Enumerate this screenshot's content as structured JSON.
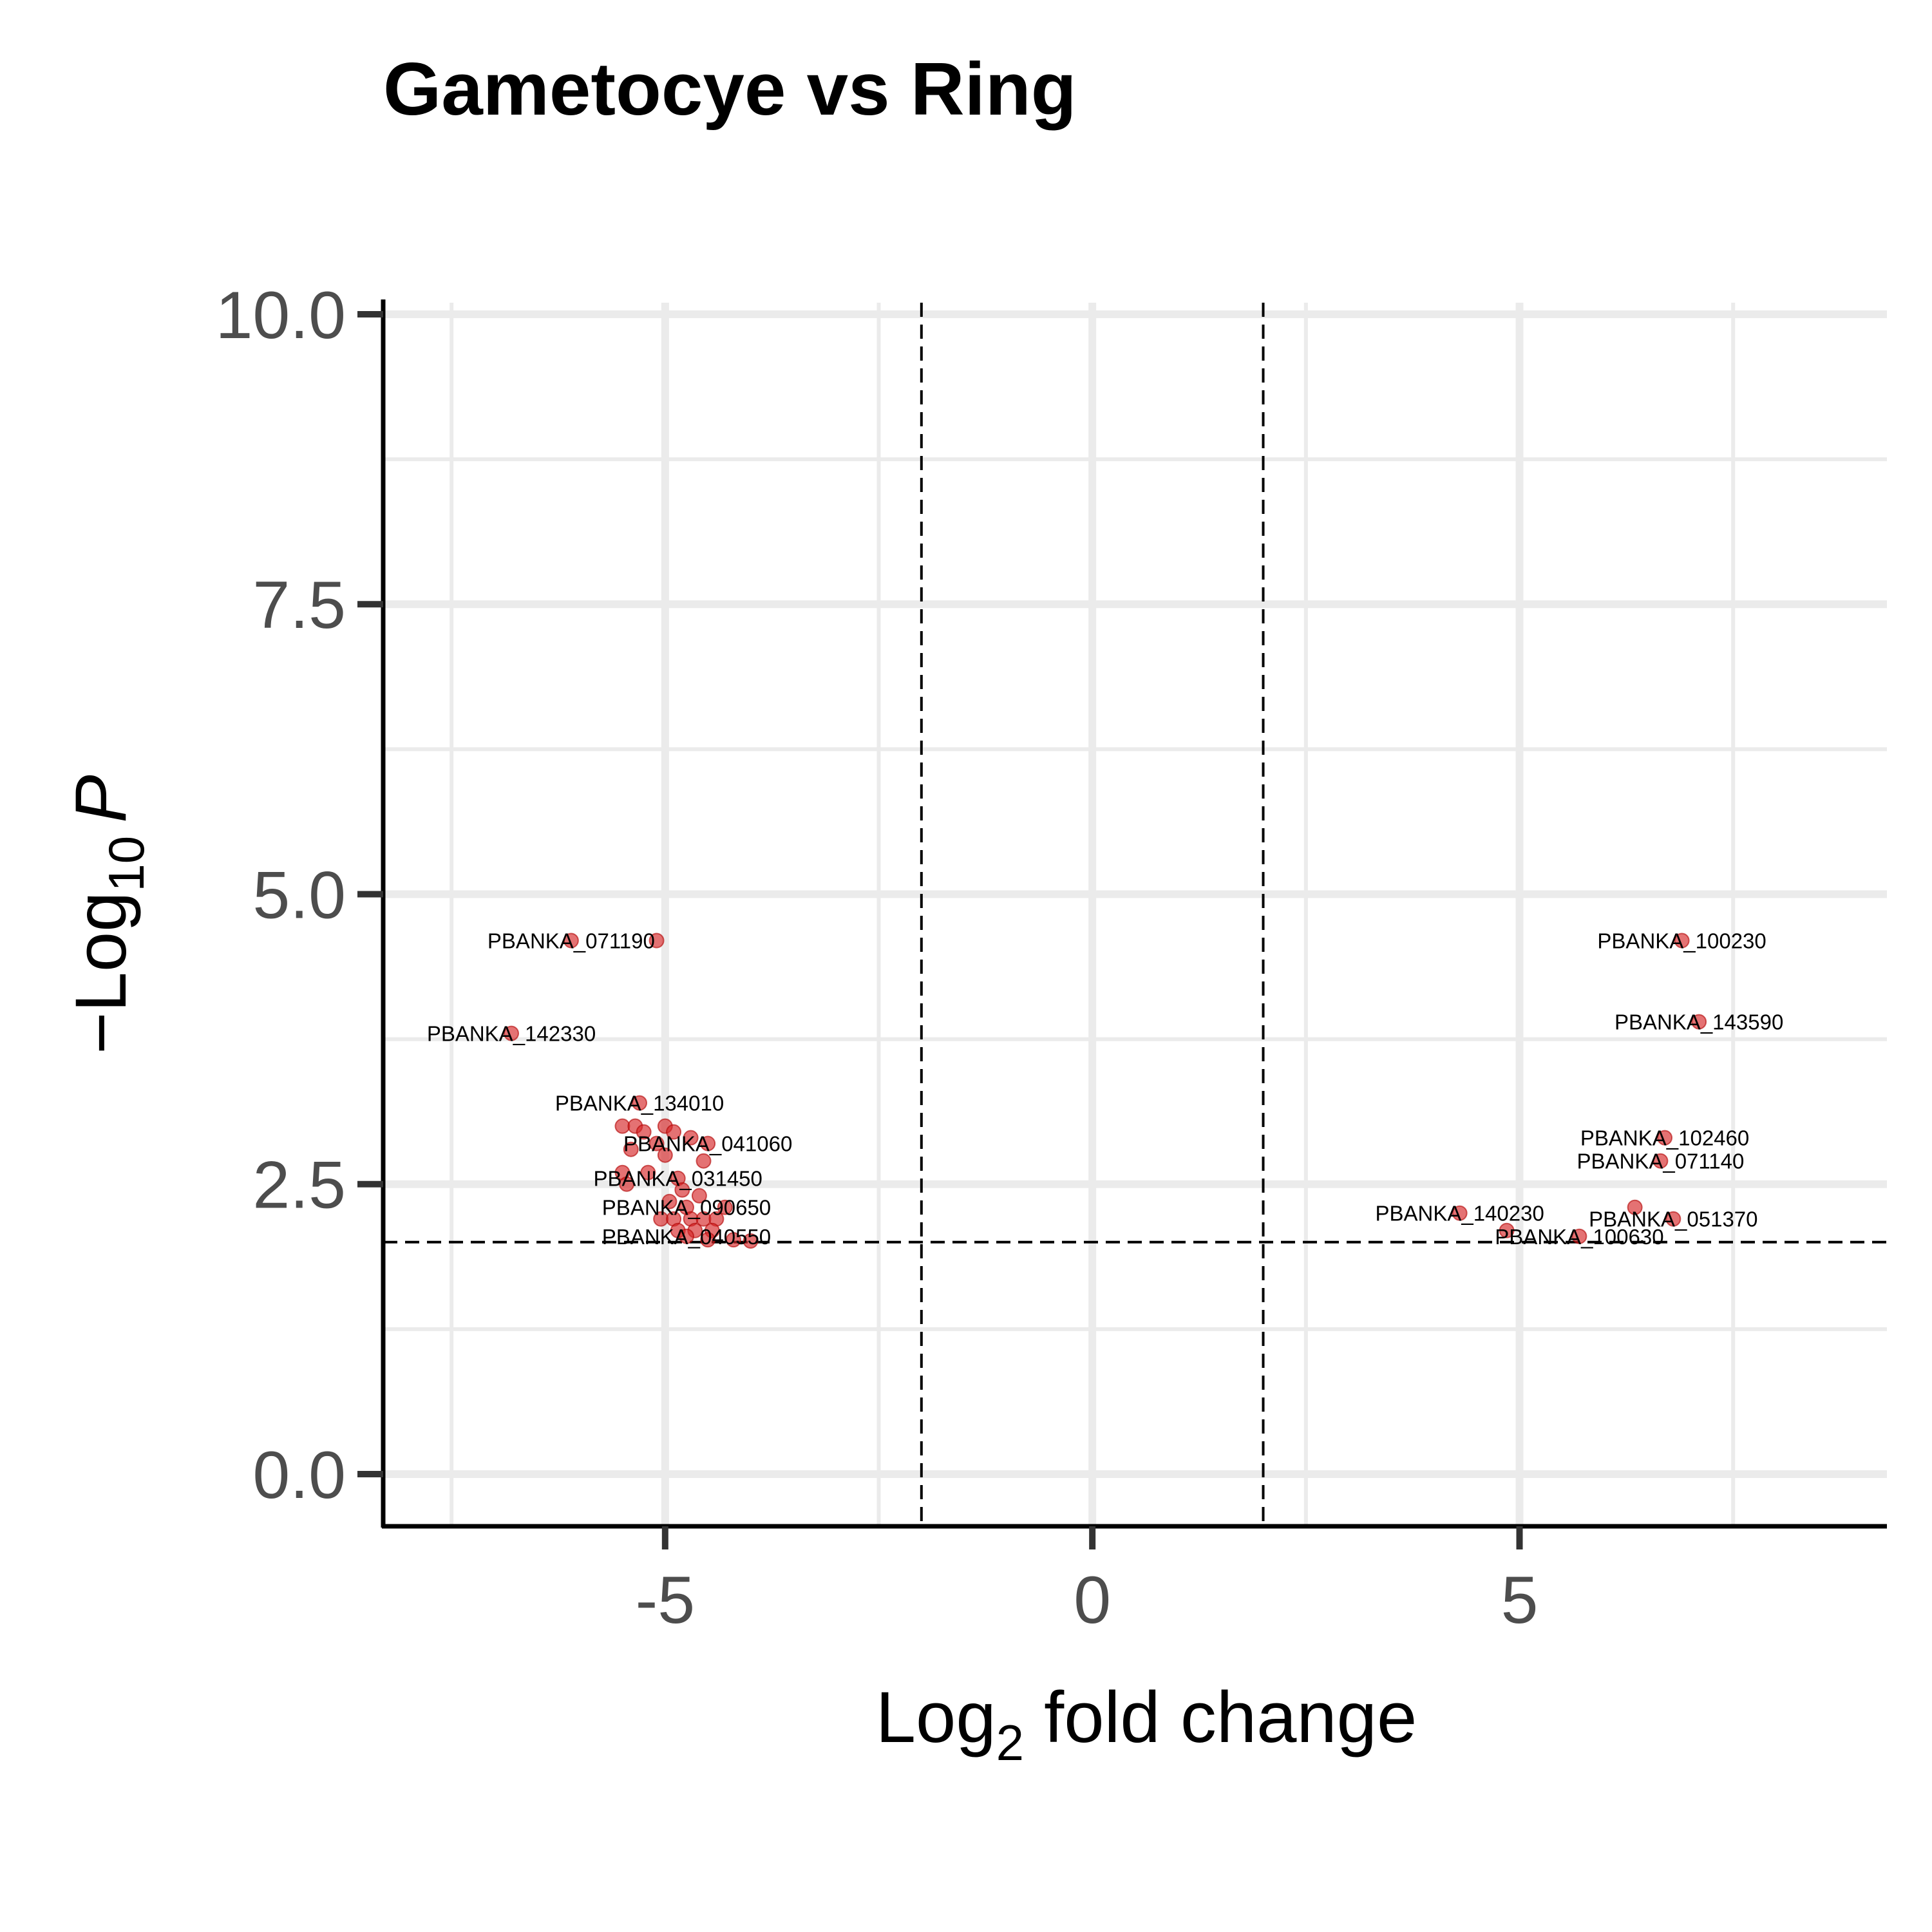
{
  "chart_data": {
    "type": "scatter",
    "title": "Gametocye vs Ring",
    "xlabel": {
      "base": "Log",
      "sub": "2",
      "rest": " fold change"
    },
    "ylabel": {
      "prefix": "−Log",
      "sub": "10",
      "var": "P"
    },
    "xlim": [
      -8.3,
      9.3
    ],
    "ylim": [
      -0.45,
      10.1
    ],
    "x_ticks": [
      -5,
      0,
      5
    ],
    "x_tick_labels": [
      "-5",
      "0",
      "5"
    ],
    "y_ticks": [
      0,
      2.5,
      5,
      7.5,
      10
    ],
    "y_tick_labels": [
      "0.0",
      "2.5",
      "5.0",
      "7.5",
      "10.0"
    ],
    "grid": true,
    "thresholds": {
      "log2fc": [
        -2,
        2
      ],
      "neg_log10_p": 2
    },
    "point_color": "#d62728",
    "points": [
      {
        "x": -6.1,
        "y": 4.6,
        "label": "PBANKA_071190"
      },
      {
        "x": -5.1,
        "y": 4.6
      },
      {
        "x": -6.8,
        "y": 3.8,
        "label": "PBANKA_142330"
      },
      {
        "x": -5.3,
        "y": 3.2,
        "label": "PBANKA_134010"
      },
      {
        "x": -5.5,
        "y": 3.0
      },
      {
        "x": -5.35,
        "y": 3.0
      },
      {
        "x": -5.25,
        "y": 2.95
      },
      {
        "x": -5.0,
        "y": 3.0
      },
      {
        "x": -4.9,
        "y": 2.95
      },
      {
        "x": -4.7,
        "y": 2.9
      },
      {
        "x": -4.5,
        "y": 2.85,
        "label": "PBANKA_041060"
      },
      {
        "x": -5.4,
        "y": 2.8
      },
      {
        "x": -5.1,
        "y": 2.85
      },
      {
        "x": -5.0,
        "y": 2.75
      },
      {
        "x": -4.55,
        "y": 2.7
      },
      {
        "x": -5.5,
        "y": 2.6
      },
      {
        "x": -5.2,
        "y": 2.6
      },
      {
        "x": -5.45,
        "y": 2.5
      },
      {
        "x": -4.85,
        "y": 2.55,
        "label": "PBANKA_031450"
      },
      {
        "x": -4.8,
        "y": 2.45
      },
      {
        "x": -4.6,
        "y": 2.4
      },
      {
        "x": -4.95,
        "y": 2.35
      },
      {
        "x": -4.75,
        "y": 2.3,
        "label": "PBANKA_090650"
      },
      {
        "x": -4.3,
        "y": 2.3
      },
      {
        "x": -5.05,
        "y": 2.2
      },
      {
        "x": -4.9,
        "y": 2.2
      },
      {
        "x": -4.7,
        "y": 2.2
      },
      {
        "x": -4.55,
        "y": 2.2
      },
      {
        "x": -4.4,
        "y": 2.2
      },
      {
        "x": -4.85,
        "y": 2.1
      },
      {
        "x": -4.65,
        "y": 2.1
      },
      {
        "x": -4.45,
        "y": 2.1
      },
      {
        "x": -4.75,
        "y": 2.05,
        "label": "PBANKA_040550"
      },
      {
        "x": -4.5,
        "y": 2.02
      },
      {
        "x": -4.2,
        "y": 2.02
      },
      {
        "x": -4.0,
        "y": 2.01
      },
      {
        "x": 6.9,
        "y": 4.6,
        "label": "PBANKA_100230"
      },
      {
        "x": 7.1,
        "y": 3.9,
        "label": "PBANKA_143590"
      },
      {
        "x": 6.7,
        "y": 2.9,
        "label": "PBANKA_102460"
      },
      {
        "x": 6.65,
        "y": 2.7,
        "label": "PBANKA_071140"
      },
      {
        "x": 4.3,
        "y": 2.25,
        "label": "PBANKA_140230"
      },
      {
        "x": 6.8,
        "y": 2.2,
        "label": "PBANKA_051370"
      },
      {
        "x": 6.35,
        "y": 2.3
      },
      {
        "x": 4.85,
        "y": 2.1
      },
      {
        "x": 5.7,
        "y": 2.05,
        "label": "PBANKA_100630"
      }
    ]
  }
}
